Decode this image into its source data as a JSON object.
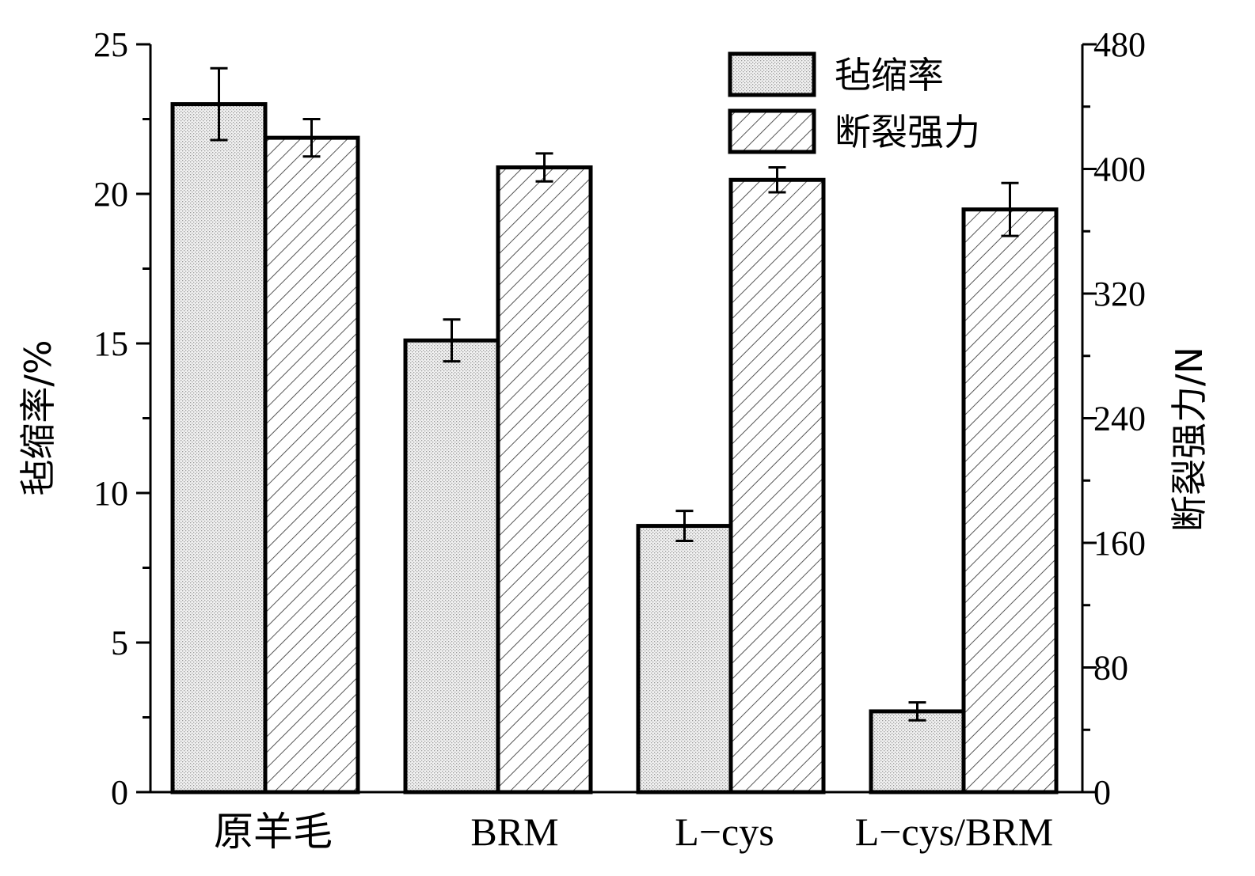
{
  "chart_data": {
    "type": "bar",
    "categories": [
      "原羊毛",
      "BRM",
      "L−cys",
      "L−cys/BRM"
    ],
    "series": [
      {
        "name": "毡缩率",
        "axis": "left",
        "values": [
          23.0,
          15.1,
          8.9,
          2.7
        ],
        "errors": [
          1.2,
          0.7,
          0.5,
          0.3
        ],
        "fill": "dots"
      },
      {
        "name": "断裂强力",
        "axis": "right",
        "values": [
          420,
          401,
          393,
          374
        ],
        "errors": [
          12,
          9,
          8,
          17
        ],
        "fill": "hatch"
      }
    ],
    "ylabel": "毡缩率/%",
    "ylabel_right": "断裂强力/N",
    "ylim": [
      0,
      25
    ],
    "ylim_right": [
      0,
      480
    ],
    "yticks": [
      0,
      5,
      10,
      15,
      20,
      25
    ],
    "yticks_right": [
      0,
      80,
      160,
      240,
      320,
      400,
      480
    ],
    "grid": false,
    "legend_position": "top-right"
  }
}
